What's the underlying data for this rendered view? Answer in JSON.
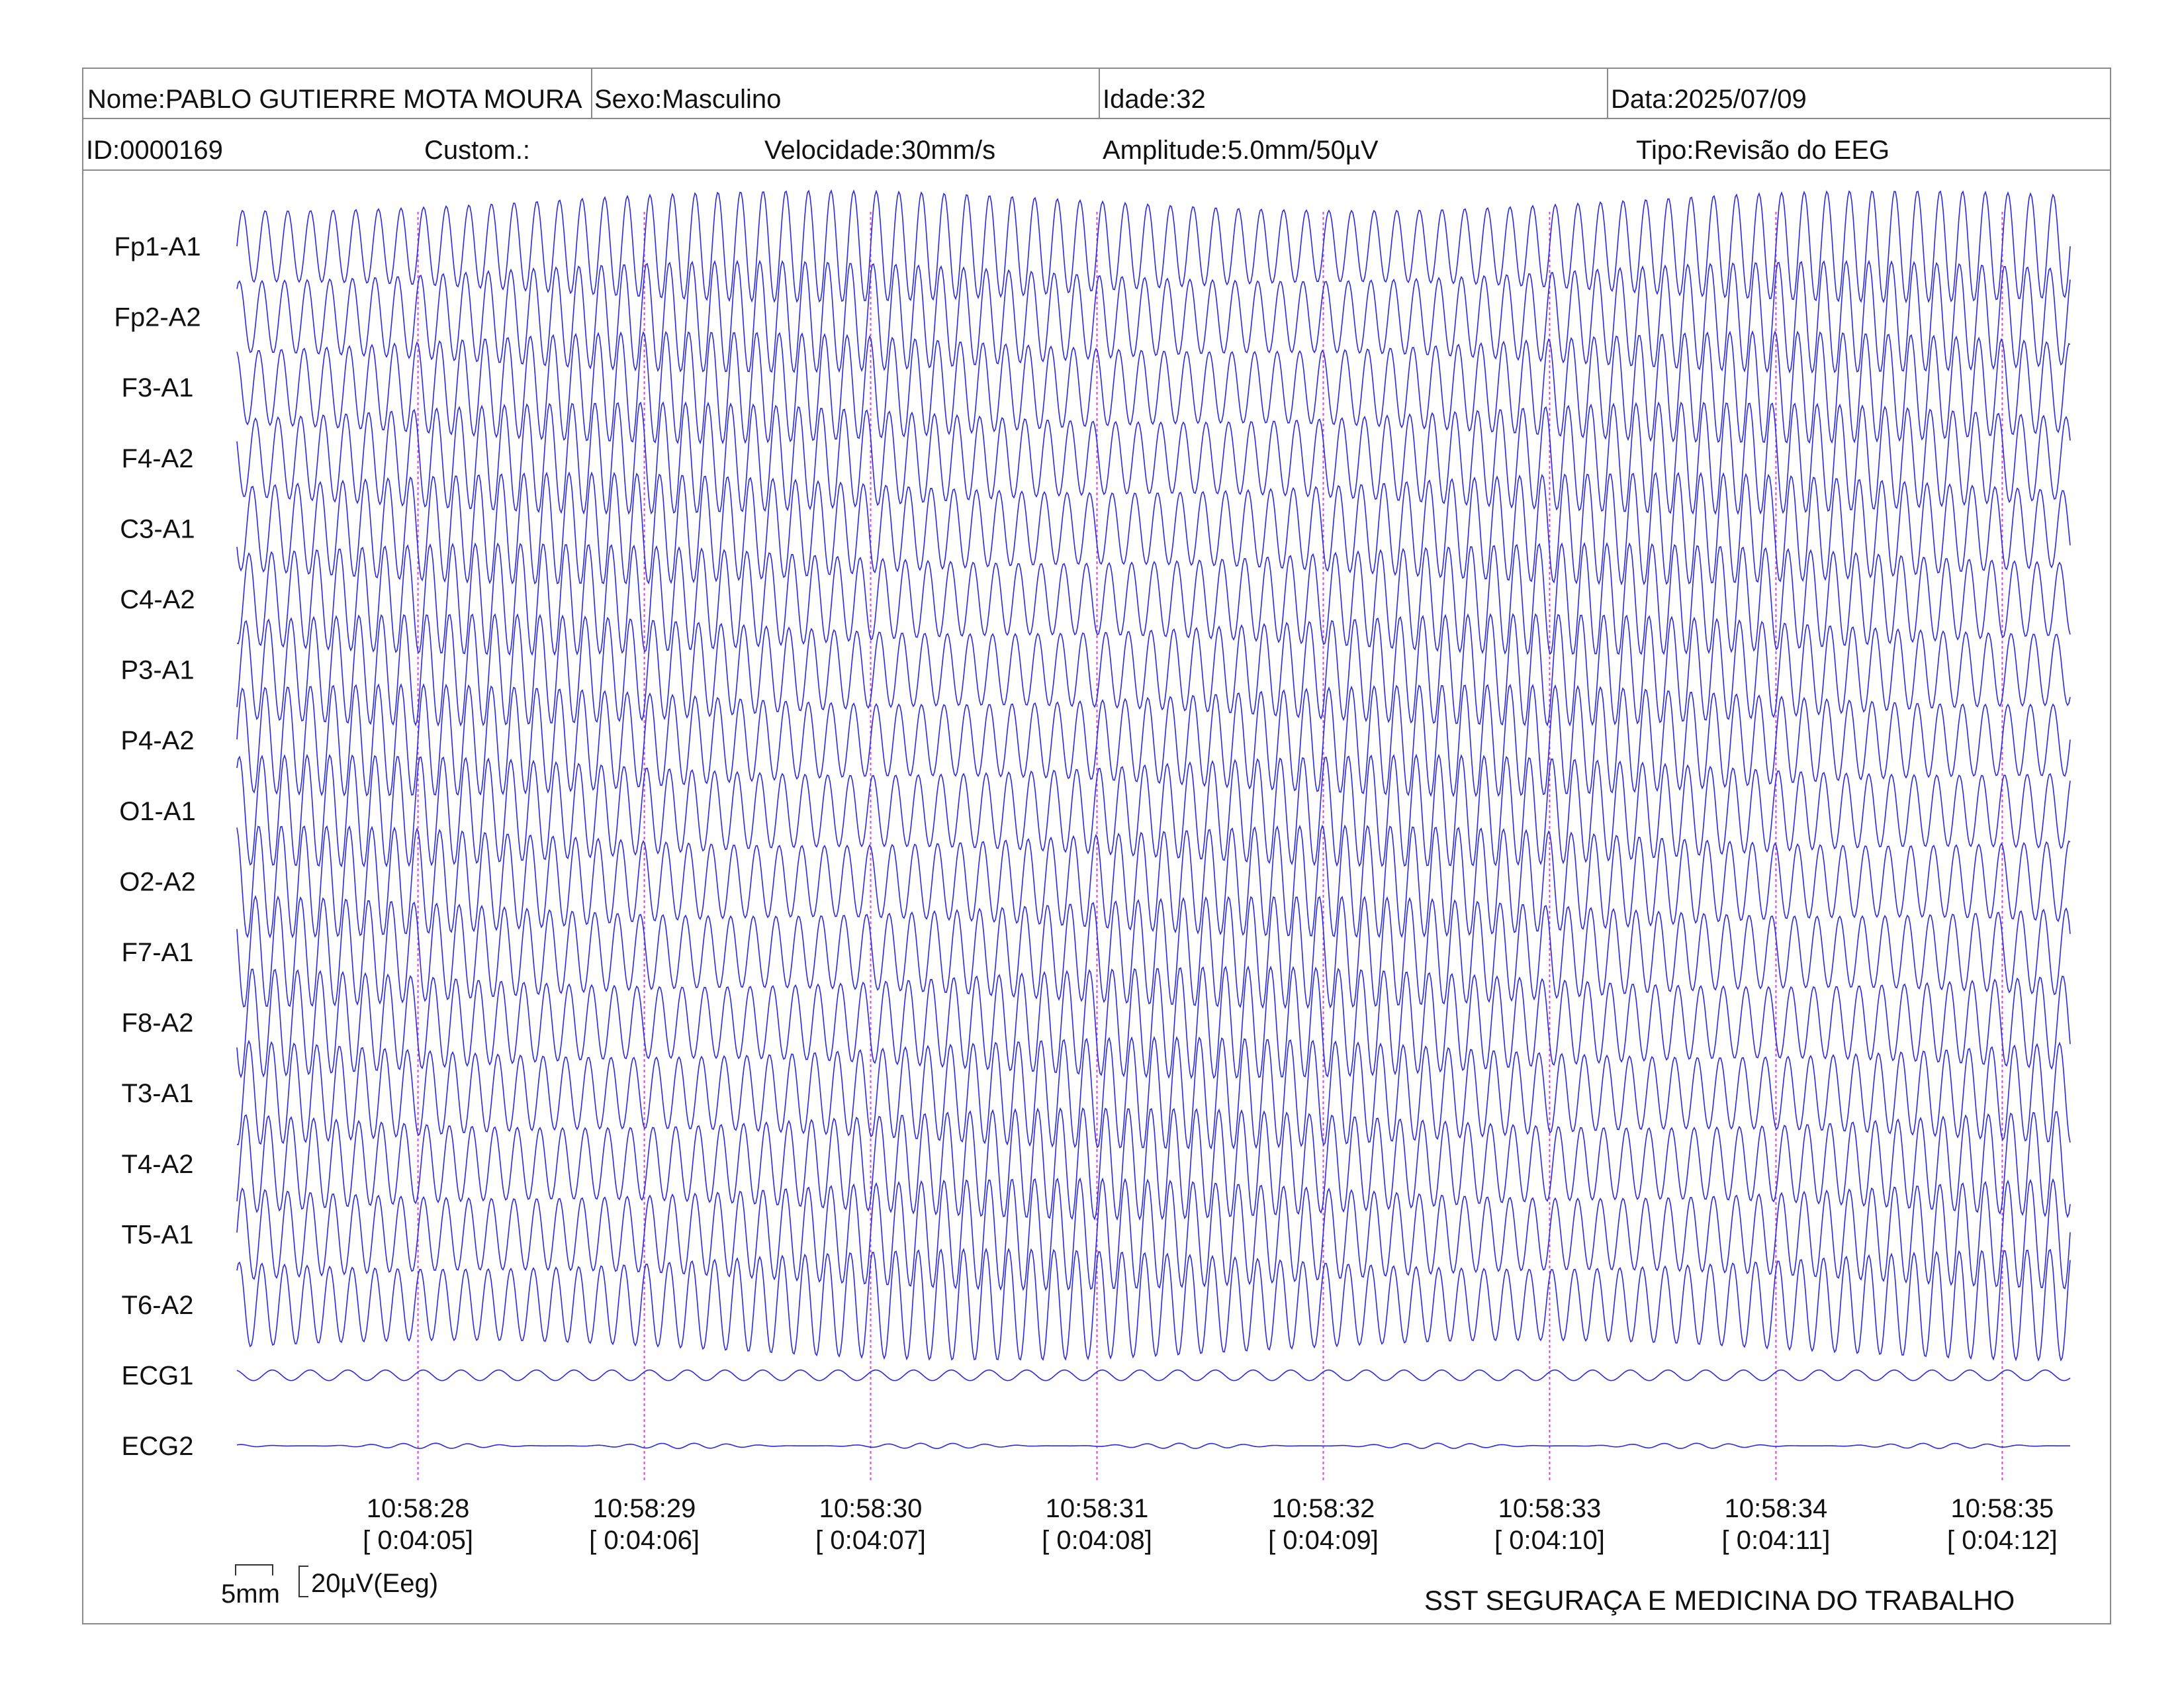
{
  "header": {
    "nome": "Nome:PABLO GUTIERRE MOTA MOURA",
    "sexo": "Sexo:Masculino",
    "idade": "Idade:32",
    "data": "Data:2025/07/09",
    "id": "ID:0000169",
    "custom": "Custom.:",
    "velocidade": "Velocidade:30mm/s",
    "amplitude": "Amplitude:5.0mm/50µV",
    "tipo": "Tipo:Revisão do EEG"
  },
  "calibration": {
    "time_label": "5mm",
    "amp_label": "20µV(Eeg)"
  },
  "footer": {
    "organization": "SST SEGURAÇA E MEDICINA DO TRABALHO"
  },
  "colors": {
    "trace": "#2a2ae0",
    "time_marker": "#e040e0",
    "border": "#8a8a8a"
  },
  "chart_data": {
    "type": "line",
    "channels": [
      "Fp1-A1",
      "Fp2-A2",
      "F3-A1",
      "F4-A2",
      "C3-A1",
      "C4-A2",
      "P3-A1",
      "P4-A2",
      "O1-A1",
      "O2-A2",
      "F7-A1",
      "F8-A2",
      "T3-A1",
      "T4-A2",
      "T5-A1",
      "T6-A2",
      "ECG1",
      "ECG2"
    ],
    "time_ticks": [
      {
        "clock": "10:58:28",
        "elapsed": "[ 0:04:05]"
      },
      {
        "clock": "10:58:29",
        "elapsed": "[ 0:04:06]"
      },
      {
        "clock": "10:58:30",
        "elapsed": "[ 0:04:07]"
      },
      {
        "clock": "10:58:31",
        "elapsed": "[ 0:04:08]"
      },
      {
        "clock": "10:58:32",
        "elapsed": "[ 0:04:09]"
      },
      {
        "clock": "10:58:33",
        "elapsed": "[ 0:04:10]"
      },
      {
        "clock": "10:58:34",
        "elapsed": "[ 0:04:11]"
      },
      {
        "clock": "10:58:35",
        "elapsed": "[ 0:04:12]"
      }
    ],
    "window_seconds": [
      27.2,
      35.3
    ],
    "eeg_frequency_hz": 10,
    "ecg1_frequency_hz": 6,
    "grid": false
  }
}
